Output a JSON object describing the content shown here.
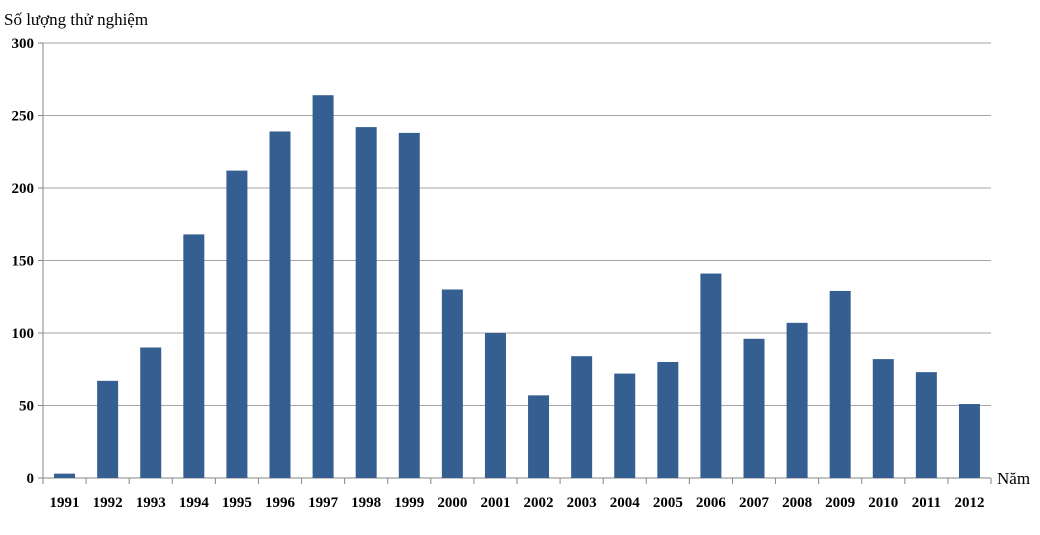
{
  "chart_data": {
    "type": "bar",
    "title": "",
    "ylabel": "Số lượng thử nghiệm",
    "xlabel": "Năm",
    "ylim": [
      0,
      300
    ],
    "yticks": [
      0,
      50,
      100,
      150,
      200,
      250,
      300
    ],
    "grid": true,
    "bar_color": "#365f91",
    "categories": [
      "1991",
      "1992",
      "1993",
      "1994",
      "1995",
      "1996",
      "1997",
      "1998",
      "1999",
      "2000",
      "2001",
      "2002",
      "2003",
      "2004",
      "2005",
      "2006",
      "2007",
      "2008",
      "2009",
      "2010",
      "2011",
      "2012"
    ],
    "values": [
      3,
      67,
      90,
      168,
      212,
      239,
      264,
      242,
      238,
      130,
      100,
      57,
      84,
      72,
      80,
      141,
      96,
      107,
      129,
      82,
      73,
      51
    ]
  }
}
